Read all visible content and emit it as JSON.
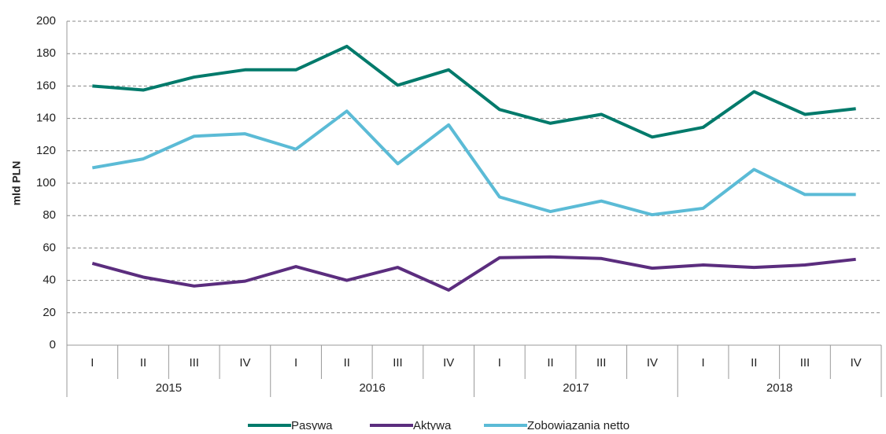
{
  "chart_data": {
    "type": "line",
    "y_label": "mld PLN",
    "categories": [
      "I",
      "II",
      "III",
      "IV",
      "I",
      "II",
      "III",
      "IV",
      "I",
      "II",
      "III",
      "IV",
      "I",
      "II",
      "III",
      "IV"
    ],
    "year_groups": [
      "2015",
      "2016",
      "2017",
      "2018"
    ],
    "series": [
      {
        "name": "Pasywa",
        "color": "#007a6b",
        "values": [
          160,
          157.5,
          165.5,
          170,
          170,
          184.5,
          160.5,
          170,
          145.5,
          137,
          142.5,
          128.5,
          134.5,
          156.5,
          142.5,
          146
        ]
      },
      {
        "name": "Aktywa",
        "color": "#5b2d7e",
        "values": [
          50.5,
          42,
          36.5,
          39.5,
          48.5,
          40,
          48,
          34,
          54,
          54.5,
          53.5,
          47.5,
          49.5,
          48,
          49.5,
          53
        ]
      },
      {
        "name": "Zobowiązania netto",
        "color": "#5bbbd6",
        "values": [
          109.5,
          115,
          129,
          130.5,
          121,
          144.5,
          112,
          136,
          91.5,
          82.5,
          89,
          80.5,
          84.5,
          108.5,
          93,
          93
        ]
      }
    ],
    "ylim": [
      0,
      200
    ],
    "yticks": [
      0,
      20,
      40,
      60,
      80,
      100,
      120,
      140,
      160,
      180,
      200
    ],
    "grid": true
  }
}
